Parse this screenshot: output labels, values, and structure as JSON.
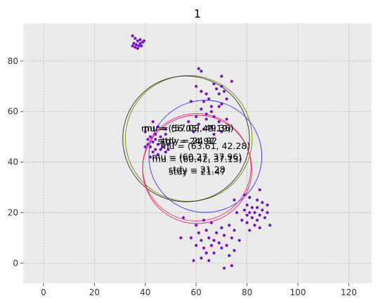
{
  "chart_data": {
    "type": "scatter",
    "title": "1",
    "xlabel": "",
    "ylabel": "",
    "xlim": [
      -8,
      129
    ],
    "ylim": [
      -8,
      95
    ],
    "xticks": [
      0,
      20,
      40,
      60,
      80,
      100,
      120
    ],
    "yticks": [
      0,
      20,
      40,
      60,
      80
    ],
    "grid": true,
    "background": "#ebebeb",
    "points": [
      {
        "x": 35,
        "y": 90
      },
      {
        "x": 36,
        "y": 89
      },
      {
        "x": 37,
        "y": 88
      },
      {
        "x": 38,
        "y": 88.5
      },
      {
        "x": 35.5,
        "y": 87
      },
      {
        "x": 36.5,
        "y": 86.5
      },
      {
        "x": 37.5,
        "y": 86
      },
      {
        "x": 38,
        "y": 87
      },
      {
        "x": 39,
        "y": 87.5
      },
      {
        "x": 36,
        "y": 85.5
      },
      {
        "x": 35,
        "y": 86
      },
      {
        "x": 37,
        "y": 85
      },
      {
        "x": 39.5,
        "y": 88
      },
      {
        "x": 38.5,
        "y": 86
      },
      {
        "x": 61,
        "y": 77
      },
      {
        "x": 62,
        "y": 76
      },
      {
        "x": 70,
        "y": 74
      },
      {
        "x": 74,
        "y": 72
      },
      {
        "x": 60,
        "y": 70
      },
      {
        "x": 67,
        "y": 71
      },
      {
        "x": 68,
        "y": 69
      },
      {
        "x": 70,
        "y": 70
      },
      {
        "x": 62,
        "y": 68
      },
      {
        "x": 64,
        "y": 67
      },
      {
        "x": 69,
        "y": 67
      },
      {
        "x": 71,
        "y": 68
      },
      {
        "x": 65,
        "y": 65
      },
      {
        "x": 63,
        "y": 64
      },
      {
        "x": 72,
        "y": 65
      },
      {
        "x": 58,
        "y": 64
      },
      {
        "x": 66,
        "y": 62
      },
      {
        "x": 69,
        "y": 62
      },
      {
        "x": 62,
        "y": 61
      },
      {
        "x": 70,
        "y": 63
      },
      {
        "x": 64,
        "y": 59
      },
      {
        "x": 66,
        "y": 60
      },
      {
        "x": 60,
        "y": 58
      },
      {
        "x": 57,
        "y": 56
      },
      {
        "x": 61,
        "y": 55
      },
      {
        "x": 64,
        "y": 57
      },
      {
        "x": 67,
        "y": 58
      },
      {
        "x": 69,
        "y": 56
      },
      {
        "x": 72,
        "y": 57
      },
      {
        "x": 59,
        "y": 52
      },
      {
        "x": 63,
        "y": 53
      },
      {
        "x": 66,
        "y": 54
      },
      {
        "x": 67,
        "y": 51
      },
      {
        "x": 70,
        "y": 52
      },
      {
        "x": 43,
        "y": 56
      },
      {
        "x": 45,
        "y": 54
      },
      {
        "x": 48,
        "y": 53
      },
      {
        "x": 40,
        "y": 52
      },
      {
        "x": 42,
        "y": 50
      },
      {
        "x": 44,
        "y": 51
      },
      {
        "x": 46,
        "y": 50
      },
      {
        "x": 48,
        "y": 51
      },
      {
        "x": 41,
        "y": 49
      },
      {
        "x": 43,
        "y": 48
      },
      {
        "x": 45,
        "y": 47
      },
      {
        "x": 47,
        "y": 48
      },
      {
        "x": 49,
        "y": 47
      },
      {
        "x": 42,
        "y": 46
      },
      {
        "x": 44,
        "y": 45
      },
      {
        "x": 46,
        "y": 45
      },
      {
        "x": 48,
        "y": 44
      },
      {
        "x": 43,
        "y": 44
      },
      {
        "x": 45,
        "y": 43
      },
      {
        "x": 47,
        "y": 46
      },
      {
        "x": 40,
        "y": 46
      },
      {
        "x": 41,
        "y": 47
      },
      {
        "x": 49,
        "y": 45
      },
      {
        "x": 44,
        "y": 49
      },
      {
        "x": 42,
        "y": 42
      },
      {
        "x": 85,
        "y": 29
      },
      {
        "x": 79,
        "y": 27
      },
      {
        "x": 81,
        "y": 26
      },
      {
        "x": 84,
        "y": 25
      },
      {
        "x": 86,
        "y": 24
      },
      {
        "x": 88,
        "y": 23
      },
      {
        "x": 80,
        "y": 23
      },
      {
        "x": 82,
        "y": 22
      },
      {
        "x": 84,
        "y": 22
      },
      {
        "x": 86,
        "y": 21
      },
      {
        "x": 79,
        "y": 21
      },
      {
        "x": 81,
        "y": 20
      },
      {
        "x": 83,
        "y": 20
      },
      {
        "x": 85,
        "y": 19
      },
      {
        "x": 80,
        "y": 19
      },
      {
        "x": 82,
        "y": 18
      },
      {
        "x": 84,
        "y": 17
      },
      {
        "x": 87,
        "y": 18
      },
      {
        "x": 78,
        "y": 17
      },
      {
        "x": 80,
        "y": 16
      },
      {
        "x": 83,
        "y": 15
      },
      {
        "x": 85,
        "y": 14
      },
      {
        "x": 81,
        "y": 13
      },
      {
        "x": 76,
        "y": 20
      },
      {
        "x": 75,
        "y": 25
      },
      {
        "x": 89,
        "y": 15
      },
      {
        "x": 88,
        "y": 20
      },
      {
        "x": 55,
        "y": 18
      },
      {
        "x": 60,
        "y": 15
      },
      {
        "x": 63,
        "y": 17
      },
      {
        "x": 66,
        "y": 16
      },
      {
        "x": 70,
        "y": 14
      },
      {
        "x": 73,
        "y": 15
      },
      {
        "x": 75,
        "y": 13
      },
      {
        "x": 61,
        "y": 12
      },
      {
        "x": 64,
        "y": 13
      },
      {
        "x": 68,
        "y": 12
      },
      {
        "x": 71,
        "y": 11
      },
      {
        "x": 74,
        "y": 10
      },
      {
        "x": 58,
        "y": 10
      },
      {
        "x": 62,
        "y": 9
      },
      {
        "x": 65,
        "y": 10
      },
      {
        "x": 67,
        "y": 9
      },
      {
        "x": 69,
        "y": 8
      },
      {
        "x": 72,
        "y": 7
      },
      {
        "x": 60,
        "y": 7
      },
      {
        "x": 63,
        "y": 6
      },
      {
        "x": 66,
        "y": 7
      },
      {
        "x": 70,
        "y": 6
      },
      {
        "x": 75,
        "y": 5
      },
      {
        "x": 64,
        "y": 4
      },
      {
        "x": 67,
        "y": 4
      },
      {
        "x": 73,
        "y": 3
      },
      {
        "x": 62,
        "y": 2
      },
      {
        "x": 59,
        "y": 1
      },
      {
        "x": 65,
        "y": 1
      },
      {
        "x": 71,
        "y": -2
      },
      {
        "x": 74,
        "y": -1
      },
      {
        "x": 54,
        "y": 10
      },
      {
        "x": 77,
        "y": 9
      }
    ],
    "circles": [
      {
        "cx": 57.09,
        "cy": 49.35,
        "r": 24.92,
        "color": "#808000"
      },
      {
        "cx": 56.05,
        "cy": 49.19,
        "r": 24.92,
        "color": "#2b2b2b"
      },
      {
        "cx": 63.61,
        "cy": 42.28,
        "r": 22.2,
        "color": "#3333ff"
      },
      {
        "cx": 60.27,
        "cy": 37.96,
        "r": 21.28,
        "color": "#e8336a"
      },
      {
        "cx": 60.42,
        "cy": 37.13,
        "r": 21.47,
        "color": "#d6246e"
      }
    ],
    "annotations": [
      {
        "text": "mu = (57.09, 49.35)",
        "x": 57.09,
        "y": 49.35,
        "dy": 4
      },
      {
        "text": "mu = (56.05, 49.19)",
        "x": 56.05,
        "y": 49.19,
        "dy": 4
      },
      {
        "text": "stdy = 24.92",
        "x": 57.09,
        "y": 49.35,
        "dy": -1
      },
      {
        "text": "stdy = 24.92",
        "x": 56.05,
        "y": 49.19,
        "dy": -1
      },
      {
        "text": "mu = (63.61, 42.28)",
        "x": 63.61,
        "y": 42.28,
        "dy": 4
      },
      {
        "text": "mu = (60.27, 37.96)",
        "x": 60.27,
        "y": 37.96,
        "dy": 4
      },
      {
        "text": "mu = (60.42, 37.13)",
        "x": 60.42,
        "y": 37.13,
        "dy": 4
      },
      {
        "text": "stdy = 21.28",
        "x": 60.27,
        "y": 37.96,
        "dy": -1
      },
      {
        "text": "stdy = 21.47",
        "x": 60.42,
        "y": 37.13,
        "dy": -1
      }
    ],
    "point_fill": "#1a1aff",
    "point_edge": "#cc3399",
    "grid_color": "#b0b0b0",
    "tick_color": "#555555"
  }
}
